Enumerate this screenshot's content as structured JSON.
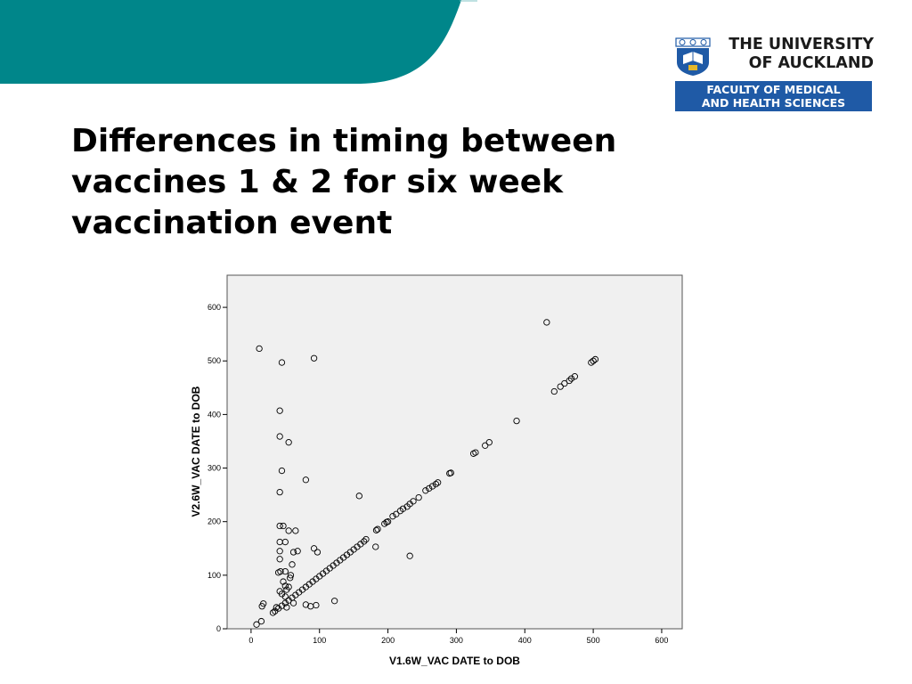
{
  "header": {
    "university_line1": "THE UNIVERSITY",
    "university_line2": "OF AUCKLAND",
    "faculty_line1": "FACULTY OF MEDICAL",
    "faculty_line2": "AND HEALTH SCIENCES",
    "colors": {
      "band": "#00868a",
      "faculty_bg": "#1f5aa6"
    },
    "logo_icon": "university-crest-icon"
  },
  "slide": {
    "title": "Differences in timing between vaccines 1 & 2 for six week vaccination event"
  },
  "chart_data": {
    "type": "scatter",
    "xlabel": "V1.6W_VAC DATE to DOB",
    "ylabel": "V2.6W_VAC DATE to DOB",
    "xlim": [
      -35,
      630
    ],
    "ylim": [
      0,
      660
    ],
    "xticks": [
      0,
      100,
      200,
      300,
      400,
      500,
      600
    ],
    "yticks": [
      0,
      100,
      200,
      300,
      400,
      500,
      600
    ],
    "grid": false,
    "marker": "open-circle",
    "plot_background": "#f0f0f0",
    "series": [
      {
        "points": [
          [
            12,
            523
          ],
          [
            45,
            497
          ],
          [
            92,
            505
          ],
          [
            432,
            572
          ],
          [
            42,
            407
          ],
          [
            42,
            359
          ],
          [
            55,
            348
          ],
          [
            45,
            295
          ],
          [
            80,
            278
          ],
          [
            42,
            255
          ],
          [
            158,
            248
          ],
          [
            42,
            192
          ],
          [
            47,
            192
          ],
          [
            55,
            183
          ],
          [
            65,
            183
          ],
          [
            42,
            162
          ],
          [
            50,
            162
          ],
          [
            92,
            150
          ],
          [
            42,
            145
          ],
          [
            62,
            143
          ],
          [
            68,
            145
          ],
          [
            97,
            143
          ],
          [
            182,
            153
          ],
          [
            232,
            136
          ],
          [
            42,
            130
          ],
          [
            60,
            120
          ],
          [
            40,
            105
          ],
          [
            43,
            107
          ],
          [
            50,
            107
          ],
          [
            58,
            100
          ],
          [
            57,
            95
          ],
          [
            47,
            88
          ],
          [
            50,
            80
          ],
          [
            55,
            78
          ],
          [
            52,
            73
          ],
          [
            42,
            70
          ],
          [
            45,
            65
          ],
          [
            50,
            60
          ],
          [
            37,
            40
          ],
          [
            32,
            30
          ],
          [
            18,
            47
          ],
          [
            16,
            42
          ],
          [
            15,
            14
          ],
          [
            8,
            8
          ],
          [
            52,
            40
          ],
          [
            62,
            48
          ],
          [
            80,
            45
          ],
          [
            87,
            42
          ],
          [
            95,
            44
          ],
          [
            122,
            52
          ],
          [
            35,
            33
          ],
          [
            40,
            38
          ],
          [
            45,
            43
          ],
          [
            50,
            48
          ],
          [
            55,
            53
          ],
          [
            60,
            58
          ],
          [
            65,
            63
          ],
          [
            70,
            68
          ],
          [
            75,
            73
          ],
          [
            80,
            78
          ],
          [
            85,
            83
          ],
          [
            90,
            88
          ],
          [
            95,
            93
          ],
          [
            100,
            98
          ],
          [
            105,
            103
          ],
          [
            110,
            108
          ],
          [
            115,
            113
          ],
          [
            120,
            118
          ],
          [
            125,
            123
          ],
          [
            130,
            128
          ],
          [
            135,
            133
          ],
          [
            140,
            138
          ],
          [
            145,
            143
          ],
          [
            150,
            148
          ],
          [
            155,
            153
          ],
          [
            160,
            158
          ],
          [
            165,
            163
          ],
          [
            168,
            167
          ],
          [
            183,
            184
          ],
          [
            185,
            186
          ],
          [
            195,
            196
          ],
          [
            198,
            199
          ],
          [
            200,
            200
          ],
          [
            207,
            210
          ],
          [
            212,
            214
          ],
          [
            218,
            220
          ],
          [
            222,
            224
          ],
          [
            228,
            228
          ],
          [
            232,
            233
          ],
          [
            237,
            238
          ],
          [
            245,
            245
          ],
          [
            255,
            258
          ],
          [
            260,
            262
          ],
          [
            265,
            266
          ],
          [
            270,
            270
          ],
          [
            273,
            273
          ],
          [
            290,
            290
          ],
          [
            292,
            291
          ],
          [
            325,
            327
          ],
          [
            328,
            329
          ],
          [
            342,
            342
          ],
          [
            348,
            348
          ],
          [
            388,
            388
          ],
          [
            443,
            443
          ],
          [
            452,
            452
          ],
          [
            458,
            458
          ],
          [
            465,
            463
          ],
          [
            468,
            467
          ],
          [
            473,
            471
          ],
          [
            497,
            497
          ],
          [
            500,
            500
          ],
          [
            503,
            503
          ]
        ]
      }
    ]
  }
}
